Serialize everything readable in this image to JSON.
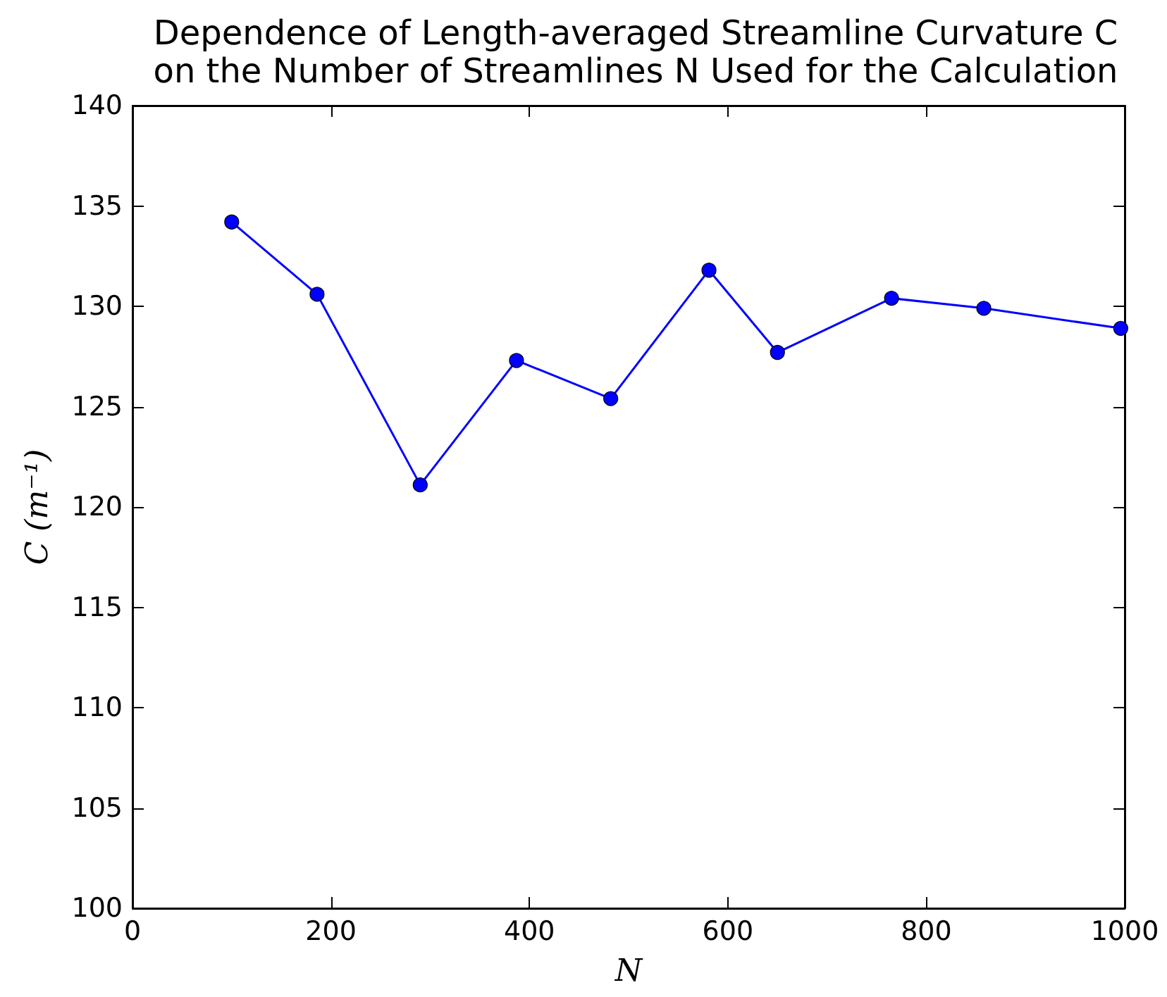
{
  "chart_data": {
    "type": "line",
    "title": "Dependence of Length-averaged Streamline Curvature C\non the Number of Streamlines N Used for the Calculation",
    "xlabel": "N",
    "ylabel": "C (m⁻¹)",
    "x": [
      100,
      186,
      290,
      387,
      482,
      581,
      650,
      765,
      858,
      996
    ],
    "values": [
      134.2,
      130.6,
      121.1,
      127.3,
      125.4,
      131.8,
      127.7,
      130.4,
      129.9,
      128.9
    ],
    "color": "#0000ff",
    "xlim": [
      0,
      1000
    ],
    "xticks": [
      0,
      200,
      400,
      600,
      800,
      1000
    ],
    "ylim": [
      100,
      140
    ],
    "yticks": [
      100,
      105,
      110,
      115,
      120,
      125,
      130,
      135,
      140
    ],
    "grid": false,
    "marker": "circle",
    "line_style": "solid"
  }
}
